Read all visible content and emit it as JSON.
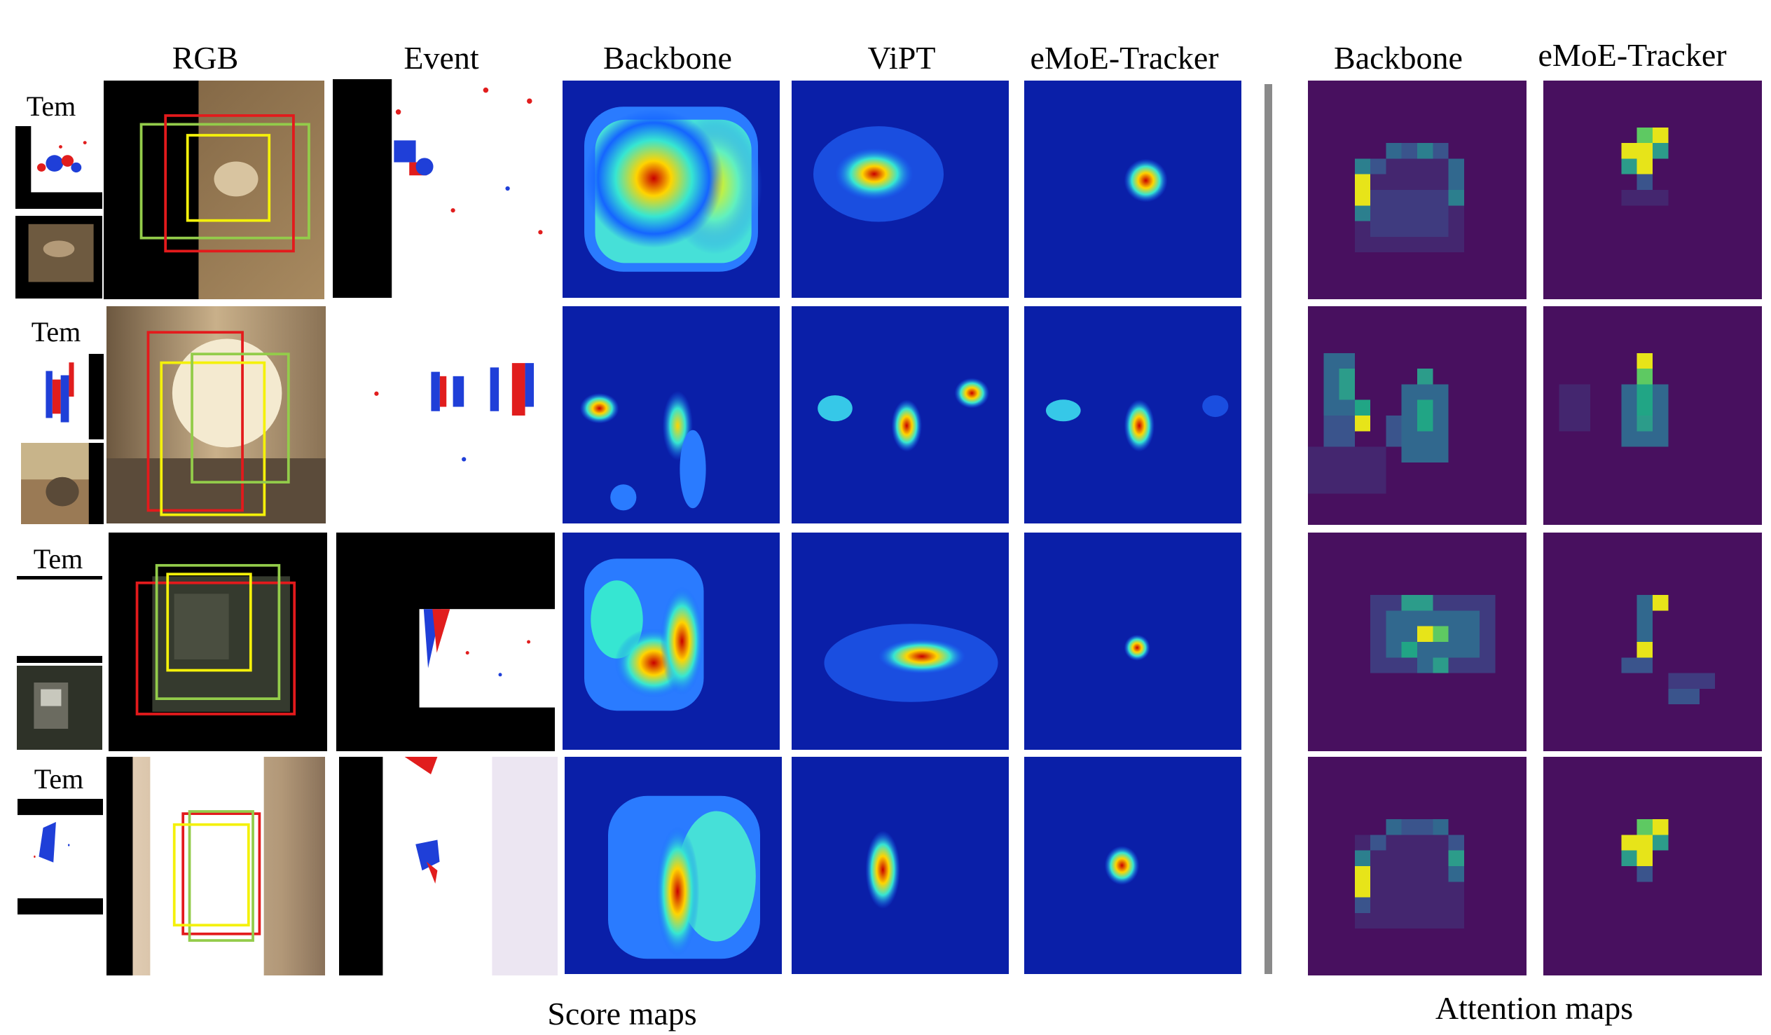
{
  "headers": {
    "rgb": "RGB",
    "event": "Event",
    "score_backbone": "Backbone",
    "score_vipt": "ViPT",
    "score_emoe": "eMoE-Tracker",
    "attn_backbone": "Backbone",
    "attn_emoe": "eMoE-Tracker"
  },
  "footers": {
    "score_maps": "Score maps",
    "attention_maps": "Attention maps"
  },
  "template_label": "Tem",
  "colors": {
    "gt_box": "#e31a1c",
    "pred_box_1": "#f4f10a",
    "pred_box_2": "#93cc4a",
    "divider": "#8a8a8a"
  }
}
